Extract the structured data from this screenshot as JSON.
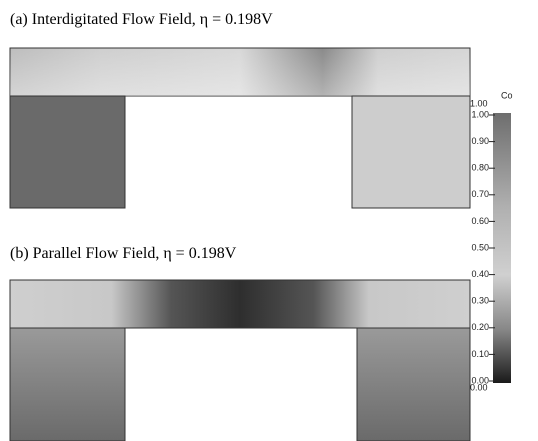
{
  "panels": [
    {
      "title": "(a) Interdigitated Flow Field, η = 0.198V"
    },
    {
      "title": "(b) Parallel Flow Field, η = 0.198V"
    }
  ],
  "colorbar": {
    "label": "Co",
    "max_label": "1.00",
    "min_label": "0.00",
    "ticks": [
      "1.00",
      "0.90",
      "0.80",
      "0.70",
      "0.60",
      "0.50",
      "0.40",
      "0.30",
      "0.20",
      "0.10",
      "0.00"
    ]
  }
}
